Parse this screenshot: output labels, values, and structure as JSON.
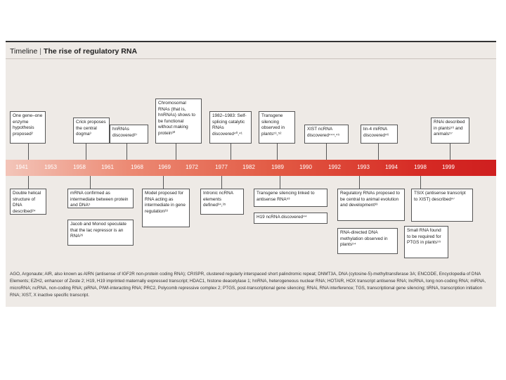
{
  "title": {
    "lead": "Timeline",
    "separator": "|",
    "main": "The rise of regulatory RNA"
  },
  "years": [
    "1941",
    "1953",
    "1958",
    "1961",
    "1968",
    "1969",
    "1972",
    "1977",
    "1982",
    "1989",
    "1990",
    "1992",
    "1993",
    "1994",
    "1998",
    "1999"
  ],
  "above": [
    {
      "text": "One gene–one enzyme hypothesis proposed²"
    },
    {
      "text": "Crick proposes the central dogma³"
    },
    {
      "text": "hnRNAs discovered²⁷"
    },
    {
      "text": "Chromosomal RNAs (that is, hnRNAs) shows to be functional without making protein³⁰"
    },
    {
      "text": "1982–1983: Self-splicing catalytic RNAs discovered⁴⁰,⁴¹"
    },
    {
      "text": "Transgene silencing observed in plants⁵¹,⁵²"
    },
    {
      "text": "XIST ncRNA discovered⁴⁴⁴,⁴⁵"
    },
    {
      "text": "lin-4 miRNA discovered⁴⁶"
    },
    {
      "text": "RNAi described in plants⁵⁶ and animals⁵⁷"
    }
  ],
  "below": [
    {
      "text": "Double helical structure of DNA described²⁴"
    },
    {
      "text": "mRNA confirmed as intermediate between protein and DNA⁵"
    },
    {
      "text": "Jacob and Monod speculate that the lac repressor is an RNA²⁶"
    },
    {
      "text": "Model proposed for RNA acting as intermediate in gene regulation²⁸"
    },
    {
      "text": "Intronic ncRNA elements defined³⁴,³⁵"
    },
    {
      "text": "Transgene silencing linked to antisense RNA⁵³"
    },
    {
      "text": "H19 ncRNA discovered⁴⁴"
    },
    {
      "text": "Regulatory RNAs proposed to be central to animal evolution and development³³"
    },
    {
      "text": "RNA-directed DNA methylation observed in plants⁵⁴"
    },
    {
      "text": "TSIX (antisense transcript to XIST) described⁴⁷"
    },
    {
      "text": "Small RNA found to be required for PTGS in plants⁵⁵"
    }
  ],
  "abbreviations": "AGO, Argonaute; AIR, also known as AIRN (antisense of IGF2R non-protein coding RNA); CRISPR, clustered regularly interspaced short palindromic repeat; DNMT3A, DNA (cytosine-5)-methyltransferase 3A; ENCODE, Encyclopedia of DNA Elements; EZH2, enhancer of Zeste 2; H19, H19 imprinted maternally expressed transcript; HDAC1, histone deacetylase 1; hnRNA, heterogeneous nuclear RNA; HOTAIR, HOX transcript antisense RNA; lncRNA, long non-coding RNA; miRNA, microRNA; ncRNA, non-coding RNA; piRNA, PIWI-interacting RNA; PRC2, Polycomb repressive complex 2; PTGS, post-transcriptional gene silencing; RNAi, RNA interference; TGS, transcriptional gene silencing; tiRNA, transcription initiation RNA; XIST, X inactive specific transcript.",
  "colors": {
    "bar_start": "#f3c5b9",
    "bar_end": "#cf1f1f",
    "panel": "#eeeae6"
  }
}
